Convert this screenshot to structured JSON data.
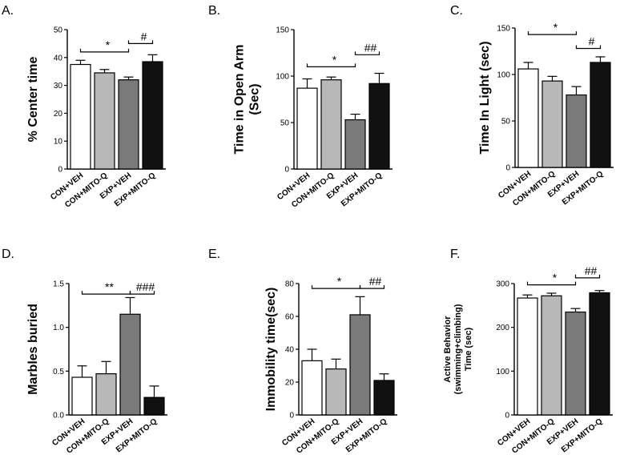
{
  "figure": {
    "domain": "six-panel bar chart figure"
  },
  "chart_data": [
    {
      "type": "bar",
      "panel_label": "A.",
      "ylabel": [
        "% Center time"
      ],
      "categories": [
        "CON+VEH",
        "CON+MITO-Q",
        "EXP+VEH",
        "EXP+MITO-Q"
      ],
      "values": [
        37.5,
        34.5,
        32.0,
        38.5
      ],
      "errors": [
        1.5,
        1.2,
        1.0,
        2.5
      ],
      "colors": [
        "#ffffff",
        "#b8b8b8",
        "#7a7a7a",
        "#111111"
      ],
      "ylim": [
        0,
        50
      ],
      "yticks": [
        "0",
        "10",
        "20",
        "30",
        "40",
        "50"
      ],
      "significance": [
        {
          "label": "*",
          "from": 0,
          "to": 2,
          "y": 42
        },
        {
          "label": "#",
          "from": 2,
          "to": 3,
          "y": 45
        }
      ]
    },
    {
      "type": "bar",
      "panel_label": "B.",
      "ylabel": [
        "Time in Open Arm",
        "(Sec)"
      ],
      "categories": [
        "CON+VEH",
        "CON+MITO-Q",
        "EXP+VEH",
        "EXP+MITO-Q"
      ],
      "values": [
        87,
        96,
        53,
        92
      ],
      "errors": [
        10,
        3,
        6,
        11
      ],
      "colors": [
        "#ffffff",
        "#b8b8b8",
        "#7a7a7a",
        "#111111"
      ],
      "ylim": [
        0,
        150
      ],
      "yticks": [
        "0",
        "50",
        "100",
        "150"
      ],
      "significance": [
        {
          "label": "*",
          "from": 0,
          "to": 2,
          "y": 110
        },
        {
          "label": "##",
          "from": 2,
          "to": 3,
          "y": 123
        }
      ]
    },
    {
      "type": "bar",
      "panel_label": "C.",
      "ylabel": [
        "Time In Light (sec)"
      ],
      "categories": [
        "CON+VEH",
        "CON+MITO-Q",
        "EXP+VEH",
        "EXP+MITO-Q"
      ],
      "values": [
        106,
        93,
        78,
        113
      ],
      "errors": [
        7,
        5,
        9,
        6
      ],
      "colors": [
        "#ffffff",
        "#b8b8b8",
        "#7a7a7a",
        "#111111"
      ],
      "ylim": [
        0,
        150
      ],
      "yticks": [
        "0",
        "50",
        "100",
        "150"
      ],
      "significance": [
        {
          "label": "*",
          "from": 0,
          "to": 2,
          "y": 143
        },
        {
          "label": "#",
          "from": 2,
          "to": 3,
          "y": 128
        }
      ]
    },
    {
      "type": "bar",
      "panel_label": "D.",
      "ylabel": [
        "Marbles buried"
      ],
      "categories": [
        "CON+VEH",
        "CON+MITO-Q",
        "EXP+VEH",
        "EXP+MITO-Q"
      ],
      "values": [
        0.43,
        0.47,
        1.15,
        0.2
      ],
      "errors": [
        0.13,
        0.14,
        0.19,
        0.13
      ],
      "colors": [
        "#ffffff",
        "#b8b8b8",
        "#7a7a7a",
        "#111111"
      ],
      "ylim": [
        0,
        1.5
      ],
      "yticks": [
        "0.0",
        "0.5",
        "1.0",
        "1.5"
      ],
      "significance": [
        {
          "label": "**",
          "from": 0,
          "to": 2,
          "y": 1.38
        },
        {
          "label": "###",
          "from": 2,
          "to": 3,
          "y": 1.38
        }
      ]
    },
    {
      "type": "bar",
      "panel_label": "E.",
      "ylabel": [
        "Immobility time(sec)"
      ],
      "categories": [
        "CON+VEH",
        "CON+MITO-Q",
        "EXP+VEH",
        "EXP+MITO-Q"
      ],
      "values": [
        33,
        28,
        61,
        21
      ],
      "errors": [
        7,
        6,
        11,
        4
      ],
      "colors": [
        "#ffffff",
        "#b8b8b8",
        "#7a7a7a",
        "#111111"
      ],
      "ylim": [
        0,
        80
      ],
      "yticks": [
        "0",
        "20",
        "40",
        "60",
        "80"
      ],
      "significance": [
        {
          "label": "*",
          "from": 0,
          "to": 2,
          "y": 77
        },
        {
          "label": "##",
          "from": 2,
          "to": 3,
          "y": 77
        }
      ]
    },
    {
      "type": "bar",
      "panel_label": "F.",
      "ylabel": [
        "Active Behavior",
        "(swimming+climbing)",
        "Time (sec)"
      ],
      "categories": [
        "CON+VEH",
        "CON+MITO-Q",
        "EXP+VEH",
        "EXP+MITO-Q"
      ],
      "values": [
        267,
        272,
        235,
        279
      ],
      "errors": [
        7,
        6,
        8,
        5
      ],
      "colors": [
        "#ffffff",
        "#b8b8b8",
        "#7a7a7a",
        "#111111"
      ],
      "ylim": [
        0,
        300
      ],
      "yticks": [
        "0",
        "100",
        "200",
        "300"
      ],
      "significance": [
        {
          "label": "*",
          "from": 0,
          "to": 2,
          "y": 297
        },
        {
          "label": "##",
          "from": 2,
          "to": 3,
          "y": 313
        }
      ]
    }
  ]
}
